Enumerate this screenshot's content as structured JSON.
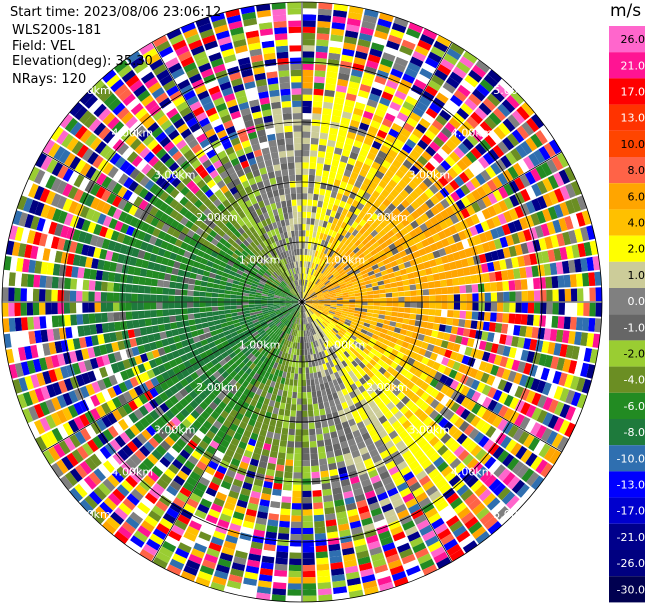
{
  "header": {
    "start_time": "Start time: 2023/08/06 23:06:12",
    "instrument": "WLS200s-181",
    "field": "Field: VEL",
    "elevation": "Elevation(deg): 35.30",
    "nrays": "NRays: 120"
  },
  "colorbar": {
    "unit": "m/s",
    "labels": [
      "26.0",
      "21.0",
      "17.0",
      "13.0",
      "10.0",
      "8.0",
      "6.0",
      "4.0",
      "2.0",
      "1.0",
      "0.0",
      "-1.0",
      "-2.0",
      "-4.0",
      "-6.0",
      "-8.0",
      "-10.0",
      "-13.0",
      "-17.0",
      "-21.0",
      "-26.0",
      "-30.0"
    ],
    "colors": [
      "#ff66cc",
      "#ff1493",
      "#ff0000",
      "#ff3300",
      "#ff4500",
      "#ff6347",
      "#ffa500",
      "#ffc000",
      "#ffff00",
      "#cccc99",
      "#808080",
      "#666666",
      "#9acd32",
      "#6b8e23",
      "#228b22",
      "#1e7a3c",
      "#2f6fb0",
      "#0000ff",
      "#0000cd",
      "#00008b",
      "#000080",
      "#000050"
    ]
  },
  "chart_data": {
    "type": "ppi",
    "field": "VEL",
    "units": "m/s",
    "n_rays": 120,
    "max_range_km": 5.0,
    "range_ring_labels": [
      "1.00km",
      "2.00km",
      "3.00km",
      "4.00km",
      "5.00km"
    ]
  }
}
